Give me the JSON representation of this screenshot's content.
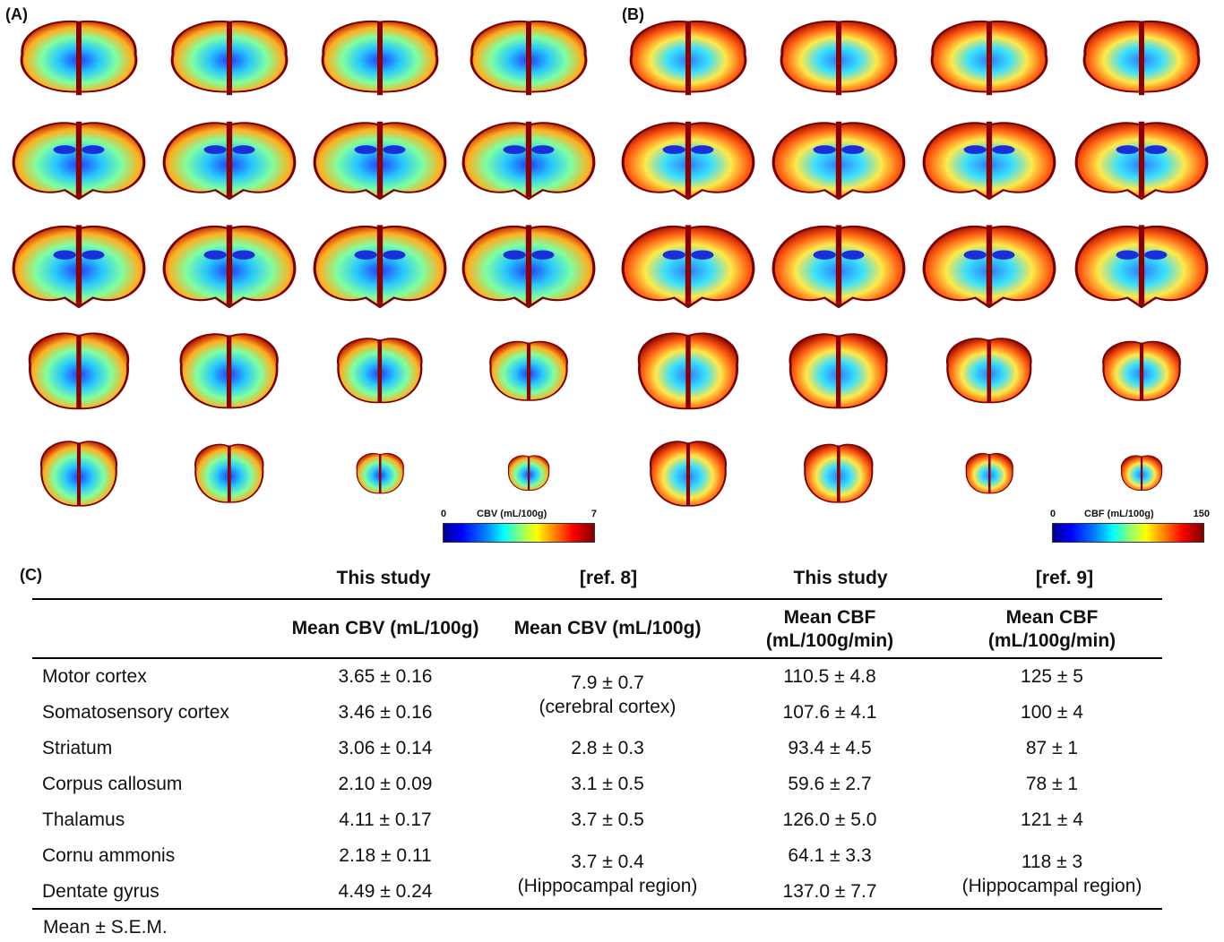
{
  "panel_labels": {
    "a": "(A)",
    "b": "(B)",
    "c": "(C)"
  },
  "colorbar_cbv": {
    "min": "0",
    "label": "CBV (mL/100g)",
    "max": "7"
  },
  "colorbar_cbf": {
    "min": "0",
    "label": "CBF (mL/100g)",
    "max": "150"
  },
  "table": {
    "group_headers": [
      "This study",
      "[ref. 8]",
      "This study",
      "[ref. 9]"
    ],
    "column_headers": [
      "Mean CBV (mL/100g)",
      "Mean CBV (mL/100g)",
      "Mean CBF",
      "(mL/100g/min)",
      "Mean CBF",
      "(mL/100g/min)"
    ],
    "regions": [
      "Motor cortex",
      "Somatosensory cortex",
      "Striatum",
      "Corpus callosum",
      "Thalamus",
      "Cornu ammonis",
      "Dentate gyrus"
    ],
    "cbv_this_study": [
      "3.65 ± 0.16",
      "3.46 ± 0.16",
      "3.06 ± 0.14",
      "2.10 ± 0.09",
      "4.11 ± 0.17",
      "2.18 ± 0.11",
      "4.49 ± 0.24"
    ],
    "cbv_ref8": [
      "7.9 ± 0.7",
      "(cerebral cortex)",
      "2.8 ± 0.3",
      "3.1 ± 0.5",
      "3.7 ± 0.5",
      "3.7 ± 0.4",
      "(Hippocampal region)"
    ],
    "cbf_this_study": [
      "110.5 ± 4.8",
      "107.6 ± 4.1",
      "93.4 ± 4.5",
      "59.6 ± 2.7",
      "126.0 ± 5.0",
      "64.1 ± 3.3",
      "137.0 ± 7.7"
    ],
    "cbf_ref9": [
      "125 ± 5",
      "100 ± 4",
      "87 ± 1",
      "78 ± 1",
      "121 ± 4",
      "118 ± 3",
      "(Hippocampal region)"
    ],
    "footnote": "Mean ± S.E.M."
  }
}
